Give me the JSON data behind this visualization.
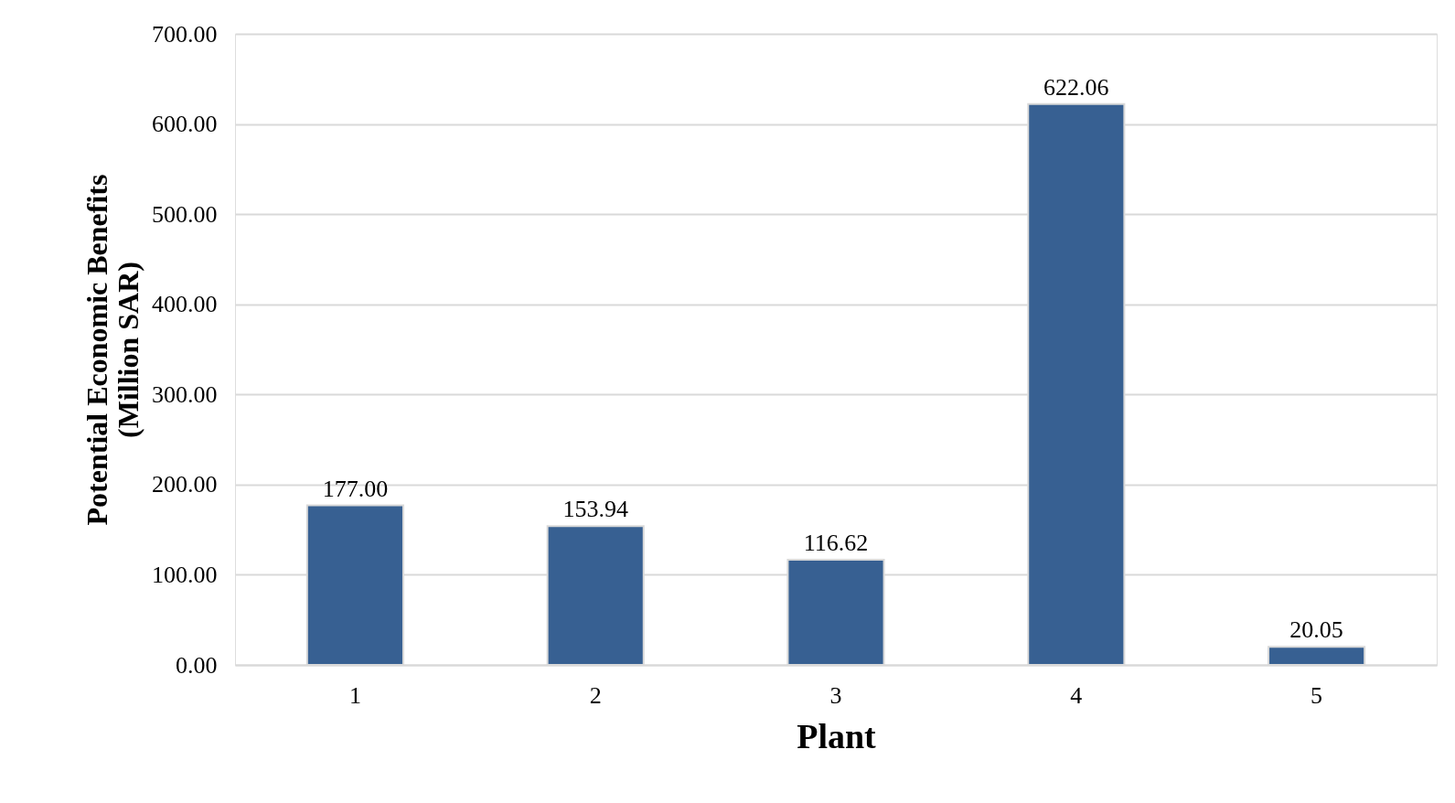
{
  "chart_data": {
    "type": "bar",
    "xlabel": "Plant",
    "ylabel": "Potential Economic Benefits\n(Million SAR)",
    "categories": [
      "1",
      "2",
      "3",
      "4",
      "5"
    ],
    "values": [
      177.0,
      153.94,
      116.62,
      622.06,
      20.05
    ],
    "value_labels": [
      "177.00",
      "153.94",
      "116.62",
      "622.06",
      "20.05"
    ],
    "color": "#376092",
    "ylim": [
      0,
      700
    ],
    "yticks": [
      {
        "value": 0,
        "label": "0.00"
      },
      {
        "value": 100,
        "label": "100.00"
      },
      {
        "value": 200,
        "label": "200.00"
      },
      {
        "value": 300,
        "label": "300.00"
      },
      {
        "value": 400,
        "label": "400.00"
      },
      {
        "value": 500,
        "label": "500.00"
      },
      {
        "value": 600,
        "label": "600.00"
      },
      {
        "value": 700,
        "label": "700.00"
      }
    ],
    "grid": "y"
  }
}
